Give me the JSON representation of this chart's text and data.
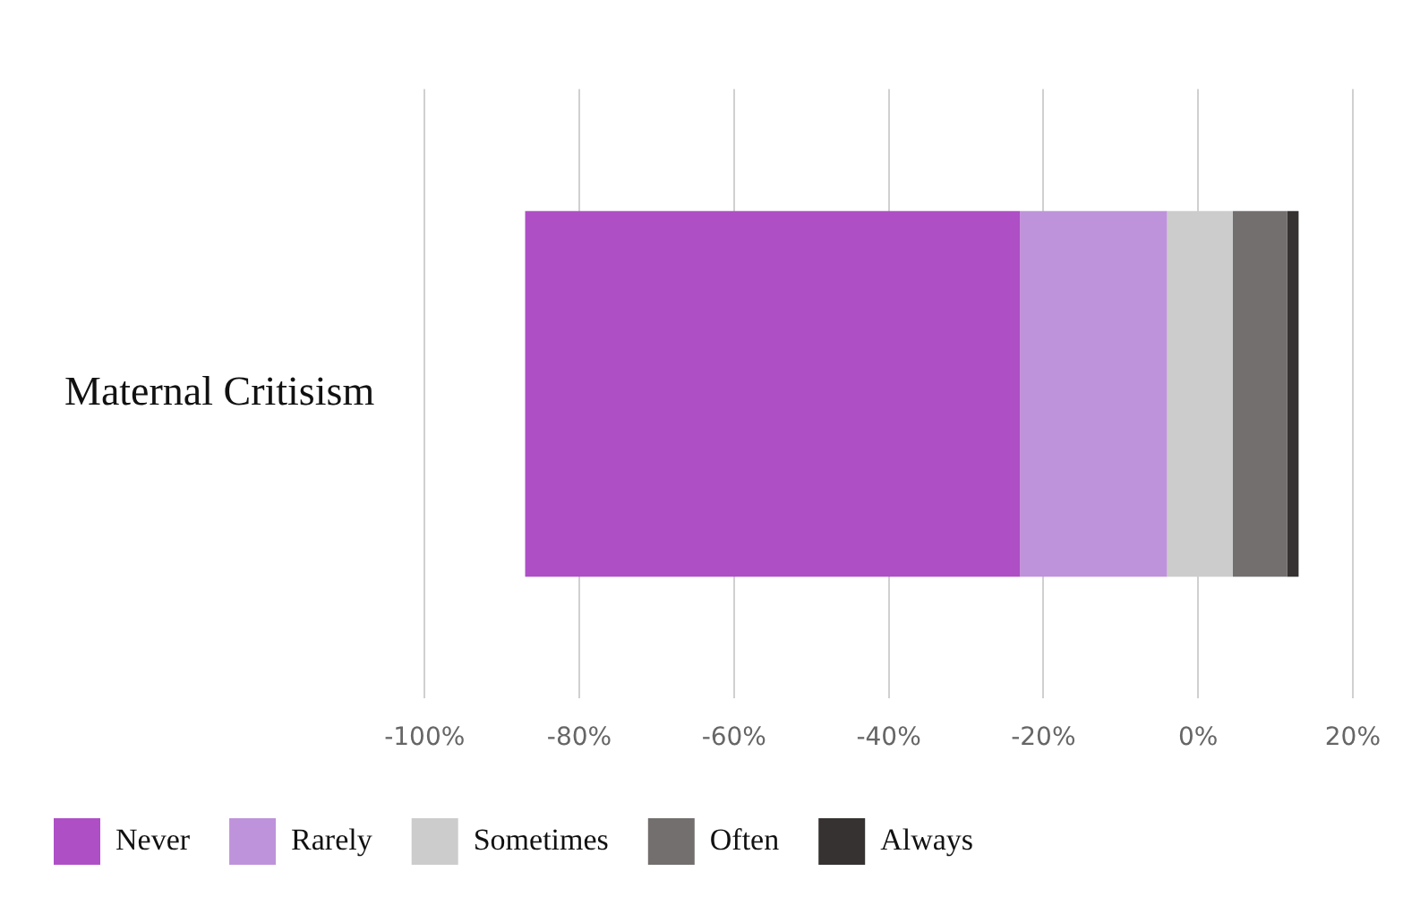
{
  "chart_data": {
    "type": "bar",
    "orientation": "horizontal",
    "categories": [
      "Maternal Critisism"
    ],
    "series": [
      {
        "name": "Never",
        "color": "#ae4fc6",
        "values": [
          64
        ],
        "base": [
          -87
        ]
      },
      {
        "name": "Rarely",
        "color": "#bf93db",
        "values": [
          19
        ],
        "base": [
          -23
        ]
      },
      {
        "name": "Sometimes",
        "color": "#cccccc",
        "values": [
          8.5
        ],
        "base": [
          -4
        ]
      },
      {
        "name": "Often",
        "color": "#736f6f",
        "values": [
          7
        ],
        "base": [
          4.5
        ]
      },
      {
        "name": "Always",
        "color": "#363232",
        "values": [
          1.5
        ],
        "base": [
          11.5
        ]
      }
    ],
    "xlim": [
      -100,
      20
    ],
    "xticks": [
      {
        "value": -100,
        "label": "-100%"
      },
      {
        "value": -80,
        "label": "-80%"
      },
      {
        "value": -60,
        "label": "-60%"
      },
      {
        "value": -40,
        "label": "-40%"
      },
      {
        "value": -20,
        "label": "-20%"
      },
      {
        "value": 0,
        "label": "0%"
      },
      {
        "value": 20,
        "label": "20%"
      }
    ],
    "grid": "x",
    "legend": "bottom"
  }
}
